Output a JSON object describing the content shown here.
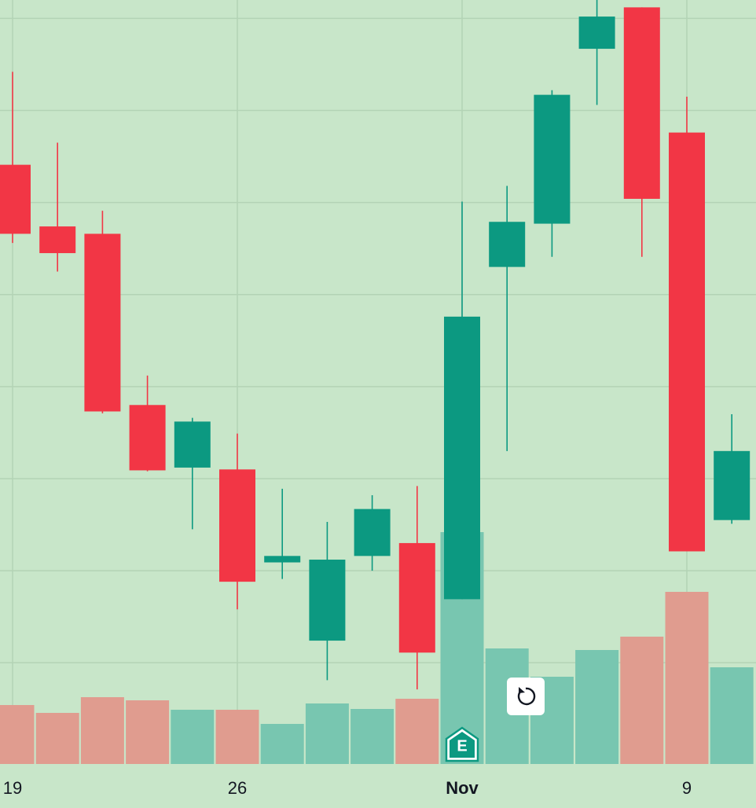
{
  "chart_data": {
    "type": "candlestick",
    "categories": [
      "19",
      null,
      null,
      null,
      null,
      "26",
      null,
      null,
      null,
      null,
      "Nov",
      null,
      null,
      null,
      null,
      "9",
      null
    ],
    "open": [
      6.41,
      5.74,
      5.66,
      3.8,
      3.12,
      3.1,
      2.09,
      1.24,
      2.16,
      2.3,
      1.69,
      5.3,
      5.77,
      7.67,
      8.12,
      6.76,
      2.55
    ],
    "high": [
      7.42,
      6.65,
      5.91,
      4.12,
      3.66,
      3.49,
      2.89,
      2.53,
      2.82,
      2.92,
      6.01,
      6.18,
      7.22,
      8.29,
      8.12,
      7.15,
      3.7
    ],
    "low": [
      5.56,
      5.25,
      3.71,
      3.08,
      2.45,
      1.58,
      1.91,
      0.81,
      2.0,
      0.71,
      1.69,
      3.3,
      5.41,
      7.06,
      5.41,
      2.21,
      2.51
    ],
    "close": [
      5.66,
      5.45,
      3.73,
      3.09,
      3.62,
      1.88,
      2.16,
      2.12,
      2.67,
      1.11,
      4.76,
      5.79,
      7.17,
      8.02,
      6.04,
      2.21,
      3.3
    ],
    "volume": [
      75,
      65,
      85,
      81,
      69,
      69,
      51,
      77,
      70,
      83,
      295,
      147,
      111,
      145,
      162,
      219,
      123
    ],
    "up_color": "#0c9981",
    "down_color": "#f23645",
    "volume_up_color": "#78c6b0",
    "volume_down_color": "#e09c8f",
    "ylim": [
      -0.1,
      8.2
    ],
    "yticks": [
      1,
      2,
      3,
      4,
      5,
      6,
      7,
      8
    ],
    "y2lim": [
      0,
      972
    ],
    "grid": true,
    "marker_label": "E"
  }
}
